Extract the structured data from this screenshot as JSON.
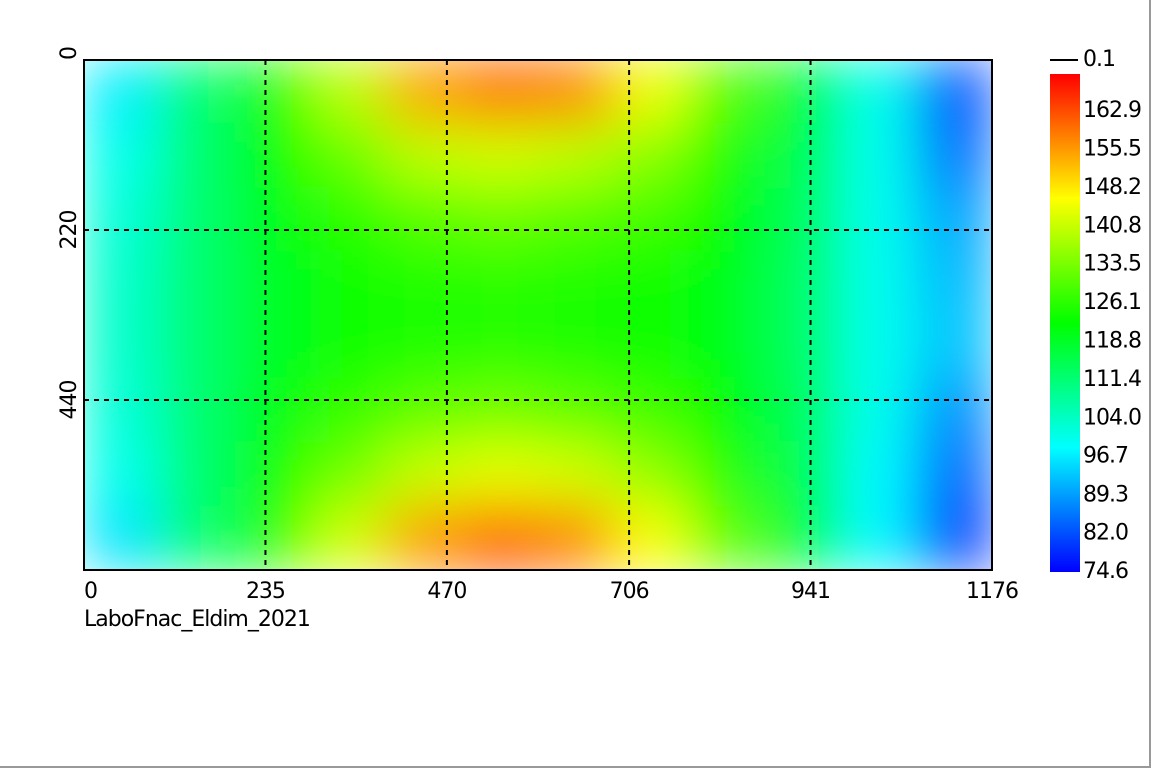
{
  "chart_data": {
    "type": "heatmap",
    "caption": "LaboFnac_Eldim_2021",
    "line_legend": "0.1",
    "x": [
      49,
      147,
      245,
      343,
      441,
      539,
      637,
      735,
      833,
      931,
      1029,
      1127
    ],
    "y": [
      41.25,
      123.75,
      206.25,
      288.75,
      371.25,
      453.75,
      536.25,
      618.75
    ],
    "z": [
      [
        97,
        112,
        125,
        140,
        155,
        160,
        158,
        145,
        130,
        118,
        100,
        82
      ],
      [
        100,
        112,
        122,
        132,
        140,
        142,
        140,
        135,
        125,
        115,
        100,
        85
      ],
      [
        102,
        112,
        120,
        126,
        130,
        132,
        130,
        128,
        122,
        114,
        100,
        90
      ],
      [
        103,
        112,
        119,
        123,
        125,
        126,
        125,
        123,
        120,
        113,
        100,
        92
      ],
      [
        103,
        112,
        119,
        123,
        125,
        126,
        125,
        123,
        120,
        113,
        100,
        93
      ],
      [
        102,
        112,
        120,
        127,
        131,
        133,
        131,
        128,
        122,
        114,
        100,
        88
      ],
      [
        100,
        112,
        123,
        133,
        141,
        144,
        142,
        136,
        126,
        115,
        98,
        84
      ],
      [
        96,
        112,
        126,
        142,
        156,
        162,
        158,
        146,
        131,
        118,
        98,
        80
      ]
    ],
    "xlim": [
      0,
      1176
    ],
    "xticks": [
      0,
      235,
      470,
      706,
      941,
      1176
    ],
    "ylim": [
      0,
      660
    ],
    "yticks": [
      0,
      220,
      440
    ],
    "grid": true,
    "colorscale": [
      "#0000ff",
      "#00ffff",
      "#00ff00",
      "#ffff00",
      "#ff0000"
    ],
    "zlim": [
      74.6,
      170
    ],
    "zticks": [
      74.6,
      {
        "value": 82,
        "label": "82.0"
      },
      89.3,
      96.7,
      {
        "value": 104,
        "label": "104.0"
      },
      111.4,
      118.8,
      126.1,
      133.5,
      140.8,
      148.2,
      155.5,
      162.9
    ]
  }
}
